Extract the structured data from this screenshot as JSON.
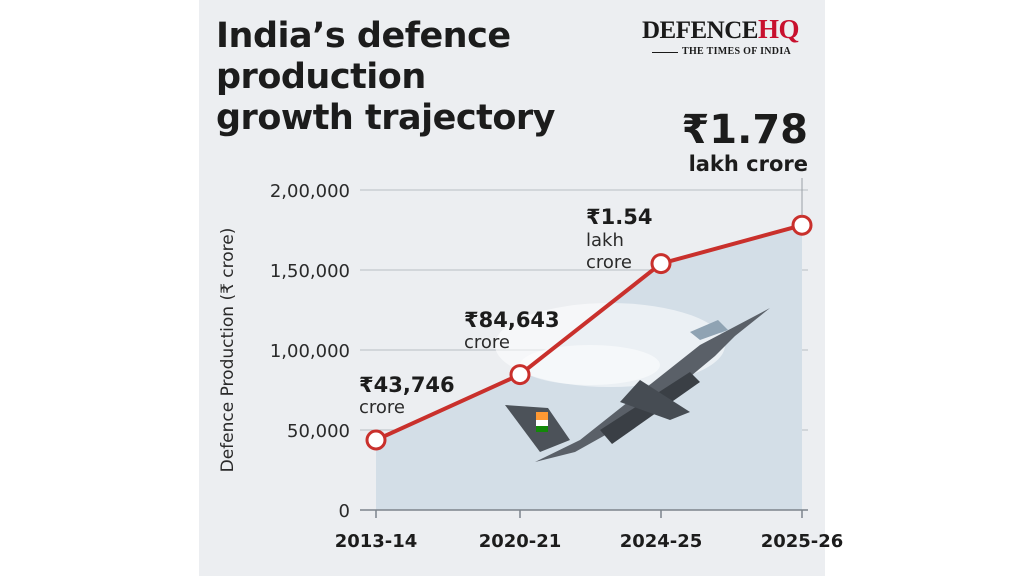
{
  "header": {
    "title_line1": "India’s defence",
    "title_line2": "production",
    "title_line3": "growth trajectory"
  },
  "logo": {
    "main": "DEFENCE",
    "accent": "HQ",
    "sub": "THE TIMES OF INDIA"
  },
  "colors": {
    "line": "#c9302c",
    "area": "#d3dee7",
    "grid": "#b9bec4",
    "panel": "#eceef1"
  },
  "chart_data": {
    "type": "area",
    "title": "India’s defence production growth trajectory",
    "xlabel": "",
    "ylabel": "Defence Production (₹ crore)",
    "categories": [
      "2013-14",
      "2020-21",
      "2024-25",
      "2025-26"
    ],
    "series": [
      {
        "values": [
          43746,
          84643,
          154000,
          178000
        ]
      }
    ],
    "ylim": [
      0,
      200000
    ],
    "yticks": [
      {
        "value": 0,
        "label": "0"
      },
      {
        "value": 50000,
        "label": "50,000"
      },
      {
        "value": 100000,
        "label": "1,00,000"
      },
      {
        "value": 150000,
        "label": "1,50,000"
      },
      {
        "value": 200000,
        "label": "2,00,000"
      }
    ],
    "grid": true,
    "data_labels": [
      {
        "lines": [
          "₹43,746",
          "crore"
        ]
      },
      {
        "lines": [
          "₹84,643",
          "crore"
        ]
      },
      {
        "lines": [
          "₹1.54",
          "lakh",
          "crore"
        ]
      },
      {
        "lines": [
          "₹1.78",
          "lakh crore"
        ]
      }
    ]
  }
}
